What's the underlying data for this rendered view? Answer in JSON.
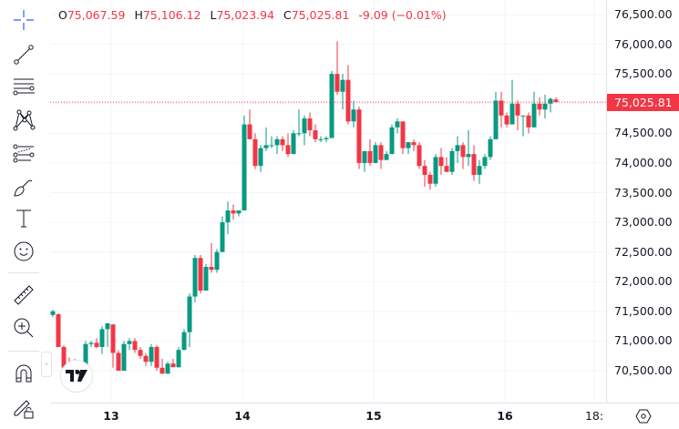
{
  "legend": {
    "open_label": "O",
    "open": "75,067.59",
    "high_label": "H",
    "high": "75,106.12",
    "low_label": "L",
    "low": "75,023.94",
    "close_label": "C",
    "close": "75,025.81",
    "change": "-9.09 (−0.01%)"
  },
  "toolbar": {
    "tools": [
      "crosshair-icon",
      "trend-line-icon",
      "horizontal-lines-icon",
      "pattern-icon",
      "fib-icon",
      "brush-icon",
      "text-icon",
      "emoji-icon",
      "ruler-icon",
      "zoom-in-icon",
      "magnet-icon",
      "lock-drawing-icon"
    ]
  },
  "price_axis": {
    "ticks": [
      "76,500.00",
      "76,000.00",
      "75,500.00",
      "74,500.00",
      "74,000.00",
      "73,500.00",
      "73,000.00",
      "72,500.00",
      "72,000.00",
      "71,500.00",
      "71,000.00",
      "70,500.00"
    ],
    "last_price": "75,025.81"
  },
  "time_axis": {
    "ticks": [
      {
        "label": "13",
        "bold": true
      },
      {
        "label": "14",
        "bold": true
      },
      {
        "label": "15",
        "bold": true
      },
      {
        "label": "16",
        "bold": true
      },
      {
        "label": "18:",
        "bold": false
      }
    ]
  },
  "colors": {
    "up": "#089981",
    "down": "#f23645",
    "grid": "#f0f3fa",
    "text": "#131722",
    "last_price_line": "#f23645",
    "toolbar_crosshair": "#2962ff"
  },
  "chart_data": {
    "type": "candlestick",
    "title": "",
    "xlabel": "",
    "ylabel": "",
    "ylim": [
      70150,
      76750
    ],
    "grid": true,
    "x_ticks": [
      "13",
      "14",
      "15",
      "16",
      "18:"
    ],
    "y_ticks": [
      70500,
      71000,
      71500,
      72000,
      72500,
      73000,
      73500,
      74000,
      74500,
      75000,
      75500,
      76000,
      76500
    ],
    "last_price": 75025.81,
    "ohlc_last": {
      "open": 75067.59,
      "high": 75106.12,
      "low": 75023.94,
      "close": 75025.81,
      "change": -9.09,
      "change_pct": -0.01
    },
    "candles": [
      [
        71440,
        71530,
        71400,
        71500
      ],
      [
        71450,
        71470,
        70950,
        70900
      ],
      [
        70900,
        70930,
        70500,
        70550
      ],
      [
        70550,
        70720,
        70350,
        70400
      ],
      [
        70400,
        70700,
        70250,
        70580
      ],
      [
        70560,
        70620,
        70550,
        70600
      ],
      [
        70600,
        71000,
        70580,
        70950
      ],
      [
        70950,
        71000,
        70900,
        70970
      ],
      [
        70970,
        71050,
        70880,
        70900
      ],
      [
        70900,
        71250,
        70780,
        71200
      ],
      [
        71200,
        71300,
        70900,
        71300
      ],
      [
        71280,
        71200,
        70550,
        70800
      ],
      [
        70800,
        70850,
        70520,
        70500
      ],
      [
        70500,
        71000,
        70600,
        70950
      ],
      [
        70950,
        71050,
        70850,
        71000
      ],
      [
        71000,
        71050,
        70800,
        70850
      ],
      [
        70850,
        70900,
        70700,
        70750
      ],
      [
        70750,
        70800,
        70580,
        70650
      ],
      [
        70650,
        70950,
        70580,
        70900
      ],
      [
        70900,
        70930,
        70500,
        70550
      ],
      [
        70550,
        70700,
        70450,
        70450
      ],
      [
        70450,
        70650,
        70450,
        70620
      ],
      [
        70620,
        70700,
        70580,
        70560
      ],
      [
        70560,
        70900,
        70550,
        70850
      ],
      [
        70850,
        71200,
        70900,
        71150
      ],
      [
        71150,
        71800,
        70900,
        71750
      ],
      [
        71750,
        72450,
        71650,
        72400
      ],
      [
        72400,
        72450,
        71800,
        71850
      ],
      [
        71850,
        72300,
        71900,
        72250
      ],
      [
        72250,
        72650,
        72150,
        72200
      ],
      [
        72200,
        72550,
        72150,
        72500
      ],
      [
        72500,
        73100,
        72550,
        73000
      ],
      [
        73000,
        73350,
        72800,
        73200
      ],
      [
        73200,
        73300,
        73050,
        73150
      ],
      [
        73150,
        73200,
        73100,
        73200
      ],
      [
        73200,
        74800,
        73200,
        74650
      ],
      [
        74650,
        74900,
        74400,
        74400
      ],
      [
        74400,
        74500,
        73900,
        73950
      ],
      [
        73950,
        74300,
        73850,
        74250
      ],
      [
        74250,
        74600,
        74200,
        74300
      ],
      [
        74300,
        74450,
        74250,
        74300
      ],
      [
        74300,
        74450,
        74150,
        74400
      ],
      [
        74400,
        74450,
        74200,
        74300
      ],
      [
        74300,
        74500,
        74100,
        74150
      ],
      [
        74150,
        74550,
        74150,
        74500
      ],
      [
        74500,
        74900,
        74450,
        74500
      ],
      [
        74500,
        74800,
        74300,
        74750
      ],
      [
        74750,
        74850,
        74450,
        74550
      ],
      [
        74550,
        74650,
        74350,
        74400
      ],
      [
        74400,
        74450,
        74350,
        74400
      ],
      [
        74400,
        74450,
        74350,
        74420
      ],
      [
        74420,
        75550,
        74420,
        75500
      ],
      [
        75500,
        76050,
        75150,
        75200
      ],
      [
        75200,
        75500,
        74900,
        75400
      ],
      [
        75400,
        75650,
        74650,
        74700
      ],
      [
        74700,
        75050,
        74600,
        74900
      ],
      [
        74900,
        74950,
        73900,
        74000
      ],
      [
        74000,
        74200,
        73850,
        74200
      ],
      [
        74200,
        74400,
        73950,
        74000
      ],
      [
        74000,
        74350,
        74000,
        74300
      ],
      [
        74300,
        74350,
        73900,
        74050
      ],
      [
        74050,
        74200,
        74050,
        74150
      ],
      [
        74150,
        74650,
        74150,
        74600
      ],
      [
        74600,
        74750,
        74500,
        74700
      ],
      [
        74700,
        74700,
        74150,
        74250
      ],
      [
        74250,
        74350,
        74150,
        74350
      ],
      [
        74350,
        74400,
        74200,
        74300
      ],
      [
        74300,
        74350,
        73900,
        73950
      ],
      [
        73950,
        74050,
        73600,
        73800
      ],
      [
        73800,
        73850,
        73550,
        73650
      ],
      [
        73650,
        74150,
        73600,
        74100
      ],
      [
        74100,
        74250,
        73800,
        73950
      ],
      [
        73950,
        74100,
        73850,
        73850
      ],
      [
        73850,
        74250,
        73800,
        74200
      ],
      [
        74200,
        74450,
        74000,
        74300
      ],
      [
        74300,
        74350,
        73900,
        74100
      ],
      [
        74100,
        74550,
        73950,
        74150
      ],
      [
        74150,
        74300,
        73700,
        73800
      ],
      [
        73800,
        74050,
        73650,
        73950
      ],
      [
        73950,
        74150,
        73900,
        74100
      ],
      [
        74100,
        74450,
        74050,
        74400
      ],
      [
        74400,
        75200,
        74400,
        75050
      ],
      [
        75050,
        75200,
        74600,
        74800
      ],
      [
        74800,
        74850,
        74600,
        74650
      ],
      [
        74650,
        75400,
        74650,
        75000
      ],
      [
        75000,
        75050,
        74550,
        74800
      ],
      [
        74800,
        74800,
        74450,
        74800
      ],
      [
        74800,
        74850,
        74500,
        74600
      ],
      [
        74600,
        75200,
        74600,
        75000
      ],
      [
        75000,
        75100,
        74800,
        74900
      ],
      [
        74900,
        75150,
        74750,
        75000
      ],
      [
        75000,
        75100,
        74850,
        75080
      ],
      [
        75068,
        75106,
        75024,
        75026
      ]
    ]
  }
}
